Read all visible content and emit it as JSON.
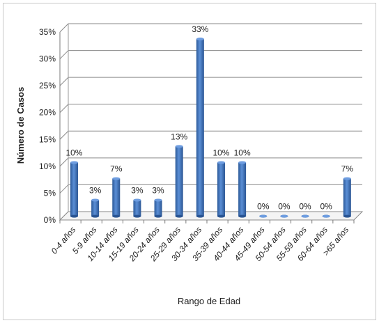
{
  "chart_data": {
    "type": "bar",
    "title": "",
    "xlabel": "Rango de Edad",
    "ylabel": "Número de Casos",
    "ylim": [
      0,
      35
    ],
    "yticks": [
      0,
      5,
      10,
      15,
      20,
      25,
      30,
      35
    ],
    "ytick_labels": [
      "0%",
      "5%",
      "10%",
      "15%",
      "20%",
      "25%",
      "30%",
      "35%"
    ],
    "grid": true,
    "legend": "none",
    "categories": [
      "0-4 años",
      "5-9 años",
      "10-14 años",
      "15-19 años",
      "20-24 años",
      "25-29 años",
      "30-34 años",
      "35-39 años",
      "40-44 años",
      "45-49 años",
      "50-54 años",
      "55-59 años",
      "60-64 años",
      ">65 años"
    ],
    "values": [
      10,
      3,
      7,
      3,
      3,
      13,
      33,
      10,
      10,
      0,
      0,
      0,
      0,
      7
    ],
    "data_labels": [
      "10%",
      "3%",
      "7%",
      "3%",
      "3%",
      "13%",
      "33%",
      "10%",
      "10%",
      "0%",
      "0%",
      "0%",
      "0%",
      "7%"
    ],
    "bar_color": "#3a6fb5"
  }
}
